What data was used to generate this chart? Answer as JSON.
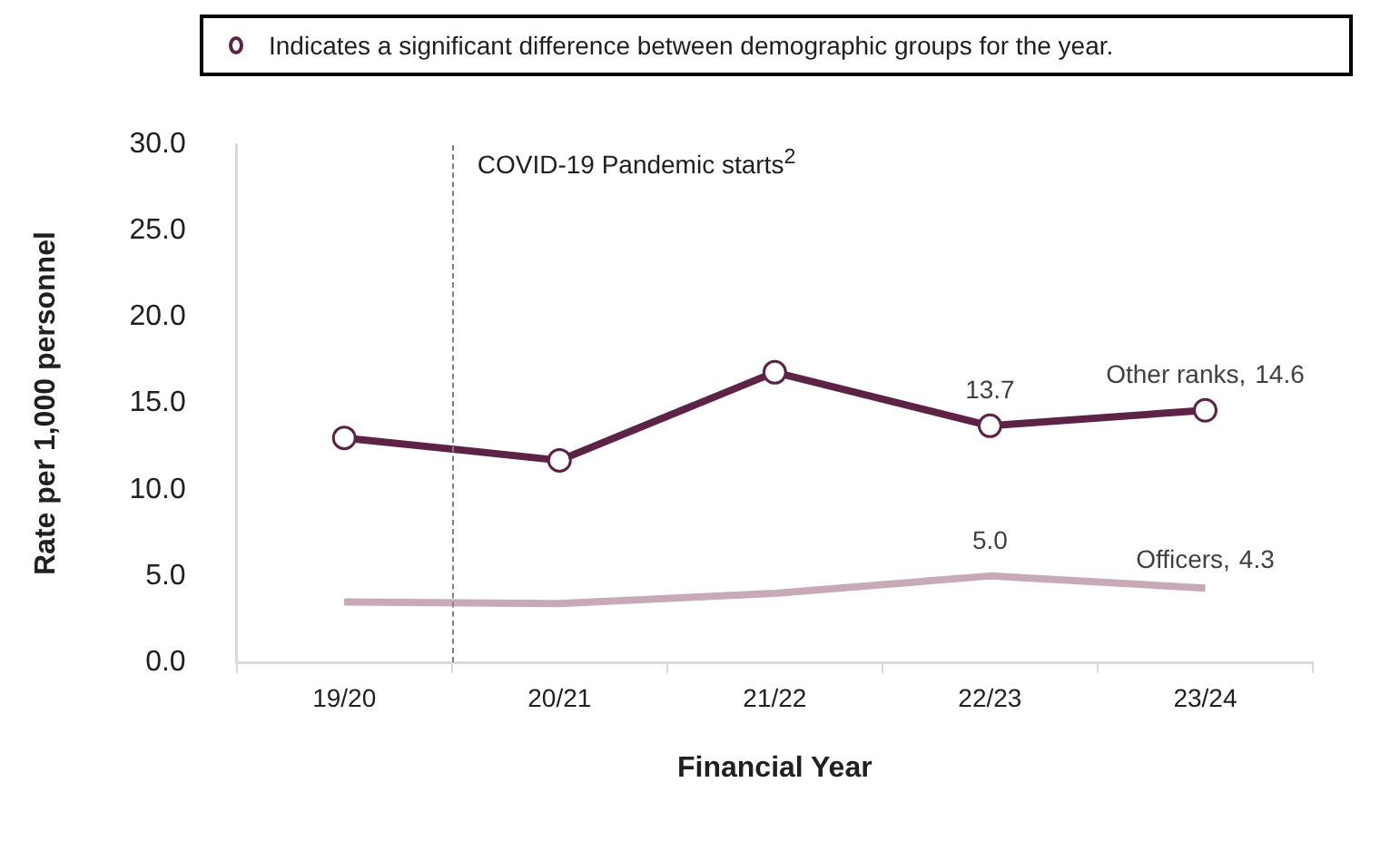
{
  "chart_data": {
    "type": "line",
    "xlabel": "Financial Year",
    "ylabel": "Rate per 1,000 personnel",
    "categories": [
      "19/20",
      "20/21",
      "21/22",
      "22/23",
      "23/24"
    ],
    "series": [
      {
        "name": "Other ranks,",
        "color": "#5c2346",
        "marker": "circle",
        "values": [
          13.0,
          11.7,
          16.8,
          13.7,
          14.6
        ],
        "value_labels": [
          null,
          null,
          null,
          "13.7",
          "14.6"
        ]
      },
      {
        "name": "Officers,",
        "color": "#c8a9b8",
        "marker": "none",
        "values": [
          3.5,
          3.4,
          4.0,
          5.0,
          4.3
        ],
        "value_labels": [
          null,
          null,
          null,
          "5.0",
          "4.3"
        ]
      }
    ],
    "ylim": [
      0,
      30
    ],
    "yticks": [
      {
        "value": 0,
        "label": "0.0"
      },
      {
        "value": 5,
        "label": "5.0"
      },
      {
        "value": 10,
        "label": "10.0"
      },
      {
        "value": 15,
        "label": "15.0"
      },
      {
        "value": 20,
        "label": "20.0"
      },
      {
        "value": 25,
        "label": "25.0"
      },
      {
        "value": 30,
        "label": "30.0"
      }
    ],
    "annotations": [
      "Indicates a significant difference between demographic groups for the year.",
      "COVID-19 Pandemic starts$^{2}$"
    ],
    "grid": false,
    "legend": false,
    "line_style": "solid"
  }
}
